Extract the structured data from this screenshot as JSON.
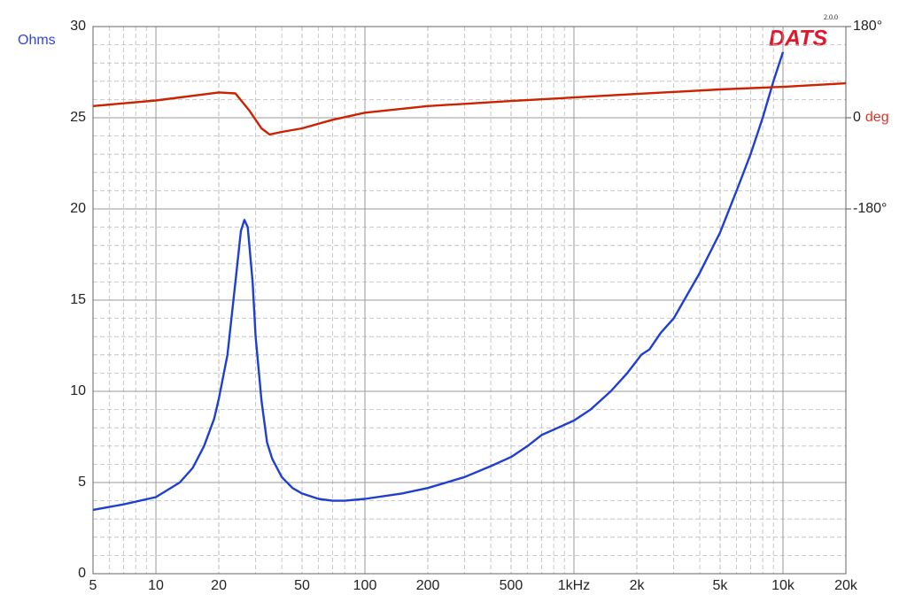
{
  "chart_data": {
    "type": "line",
    "ylabel": "Ohms",
    "y2label": "deg",
    "logo": "DATS",
    "version": "2.0.0",
    "xscale": "log",
    "grid": true,
    "xlim": [
      5,
      20000
    ],
    "xticks": [
      5,
      10,
      20,
      50,
      100,
      200,
      500,
      {
        "value": 1000,
        "label": "1kHz"
      },
      {
        "value": 2000,
        "label": "2k"
      },
      {
        "value": 5000,
        "label": "5k"
      },
      {
        "value": 10000,
        "label": "10k"
      },
      {
        "value": 20000,
        "label": "20k"
      }
    ],
    "ylim": [
      0,
      30
    ],
    "yticks": [
      0,
      5,
      10,
      15,
      20,
      25,
      30
    ],
    "y2lim": [
      -900,
      180
    ],
    "y2ticks": [
      {
        "value": 180,
        "label": "180°"
      },
      0,
      {
        "value": -180,
        "label": "-180°"
      }
    ],
    "series": [
      {
        "color": "#1f3fd0",
        "axis": "y",
        "x": [
          5,
          7,
          10,
          13,
          15,
          17,
          19,
          20,
          22,
          24,
          25.5,
          26.5,
          27.5,
          29,
          30,
          32,
          34,
          36,
          40,
          45,
          50,
          60,
          70,
          80,
          100,
          150,
          200,
          300,
          400,
          500,
          600,
          700,
          800,
          1000,
          1200,
          1500,
          1800,
          2100,
          2300,
          2600,
          3000,
          4000,
          5000,
          6000,
          7000,
          8000,
          9000,
          10000
        ],
        "values": [
          3.5,
          3.8,
          4.2,
          5.0,
          5.8,
          7.0,
          8.5,
          9.6,
          12,
          16,
          18.8,
          19.4,
          19,
          16,
          13,
          9.5,
          7.2,
          6.3,
          5.3,
          4.7,
          4.4,
          4.1,
          4.0,
          4.0,
          4.1,
          4.4,
          4.7,
          5.3,
          5.9,
          6.4,
          7.0,
          7.6,
          7.9,
          8.4,
          9.0,
          10.0,
          11.0,
          12.0,
          12.3,
          13.2,
          14.0,
          16.5,
          18.7,
          21,
          23,
          25,
          27,
          28.6
        ]
      },
      {
        "color": "#cc2200",
        "axis": "y2",
        "x": [
          5,
          10,
          20,
          24,
          28,
          32,
          35,
          40,
          50,
          70,
          100,
          200,
          500,
          1000,
          2000,
          5000,
          10000,
          20000
        ],
        "values": [
          23,
          34,
          50,
          48,
          14,
          -21,
          -33,
          -28,
          -21,
          -4,
          10,
          23,
          33,
          40,
          47,
          56,
          61,
          68
        ]
      }
    ]
  }
}
